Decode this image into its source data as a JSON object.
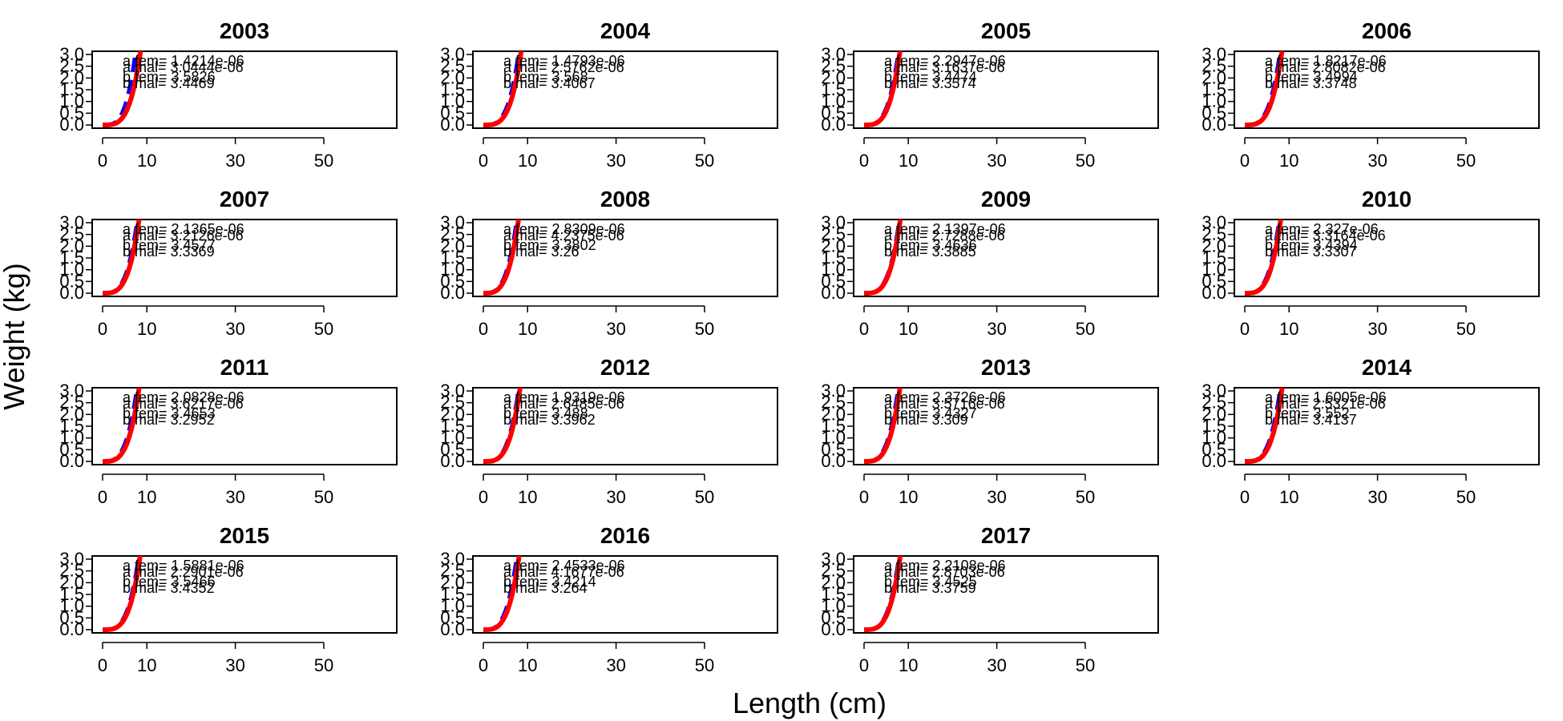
{
  "chart_data": {
    "type": "line",
    "xlabel": "Length (cm)",
    "ylabel": "Weight (kg)",
    "xlim": [
      0,
      60
    ],
    "ylim": [
      0,
      3.0
    ],
    "x_ticks": [
      0,
      10,
      30,
      50
    ],
    "y_ticks": [
      "0.0",
      "0.5",
      "1.0",
      "1.5",
      "2.0",
      "2.5",
      "3.0"
    ],
    "series_colors": {
      "female": "#ff0000",
      "male": "#0000ff"
    },
    "series_styles": {
      "female": "solid",
      "male": "dashed"
    },
    "panels": [
      {
        "title": "2003",
        "a_fem": "1.4214e-06",
        "a_mal": "3.0444e-06",
        "b_fem": "3.5826",
        "b_mal": "3.4469"
      },
      {
        "title": "2004",
        "a_fem": "1.4793e-06",
        "a_mal": "2.5762e-06",
        "b_fem": "3.568",
        "b_mal": "3.4067"
      },
      {
        "title": "2005",
        "a_fem": "2.2947e-06",
        "a_mal": "3.1637e-06",
        "b_fem": "3.4474",
        "b_mal": "3.3574"
      },
      {
        "title": "2006",
        "a_fem": "1.8217e-06",
        "a_mal": "2.8082e-06",
        "b_fem": "3.4994",
        "b_mal": "3.3748"
      },
      {
        "title": "2007",
        "a_fem": "2.1365e-06",
        "a_mal": "3.2126e-06",
        "b_fem": "3.4577",
        "b_mal": "3.3369"
      },
      {
        "title": "2008",
        "a_fem": "2.8309e-06",
        "a_mal": "4.2375e-06",
        "b_fem": "3.3802",
        "b_mal": "3.26"
      },
      {
        "title": "2009",
        "a_fem": "2.1397e-06",
        "a_mal": "2.7288e-06",
        "b_fem": "3.4636",
        "b_mal": "3.3885"
      },
      {
        "title": "2010",
        "a_fem": "2.327e-06",
        "a_mal": "3.3164e-06",
        "b_fem": "3.4394",
        "b_mal": "3.3307"
      },
      {
        "title": "2011",
        "a_fem": "2.0828e-06",
        "a_mal": "3.6217e-06",
        "b_fem": "3.4653",
        "b_mal": "3.2952"
      },
      {
        "title": "2012",
        "a_fem": "1.9319e-06",
        "a_mal": "2.6485e-06",
        "b_fem": "3.488",
        "b_mal": "3.3962"
      },
      {
        "title": "2013",
        "a_fem": "2.3726e-06",
        "a_mal": "3.5716e-06",
        "b_fem": "3.4327",
        "b_mal": "3.309"
      },
      {
        "title": "2014",
        "a_fem": "1.6005e-06",
        "a_mal": "2.5321e-06",
        "b_fem": "3.552",
        "b_mal": "3.4137"
      },
      {
        "title": "2015",
        "a_fem": "1.5881e-06",
        "a_mal": "2.2901e-06",
        "b_fem": "3.5466",
        "b_mal": "3.4352"
      },
      {
        "title": "2016",
        "a_fem": "2.4533e-06",
        "a_mal": "4.1677e-06",
        "b_fem": "3.4214",
        "b_mal": "3.264"
      },
      {
        "title": "2017",
        "a_fem": "2.2108e-06",
        "a_mal": "2.8703e-06",
        "b_fem": "3.4525",
        "b_mal": "3.3759"
      }
    ]
  }
}
